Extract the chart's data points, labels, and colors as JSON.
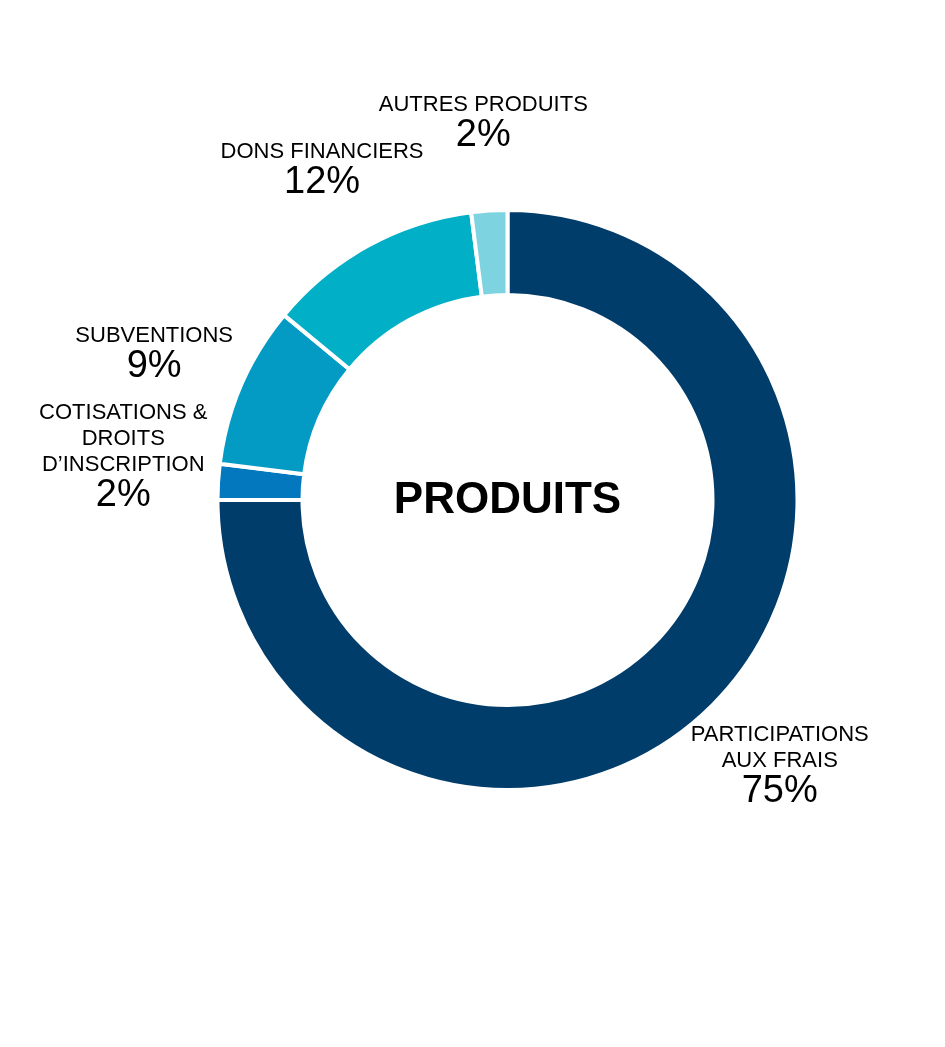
{
  "chart_data": {
    "type": "donut",
    "title": "PRODUITS",
    "categories": [
      "PARTICIPATIONS AUX FRAIS",
      "COTISATIONS & DROITS D’INSCRIPTION",
      "SUBVENTIONS",
      "DONS FINANCIERS",
      "AUTRES PRODUITS"
    ],
    "values": [
      75,
      2,
      9,
      12,
      2
    ],
    "colors": [
      "#003d6b",
      "#0478be",
      "#039bc4",
      "#01afc6",
      "#7dd3e0"
    ],
    "value_labels": [
      "75%",
      "2%",
      "9%",
      "12%",
      "2%"
    ]
  }
}
